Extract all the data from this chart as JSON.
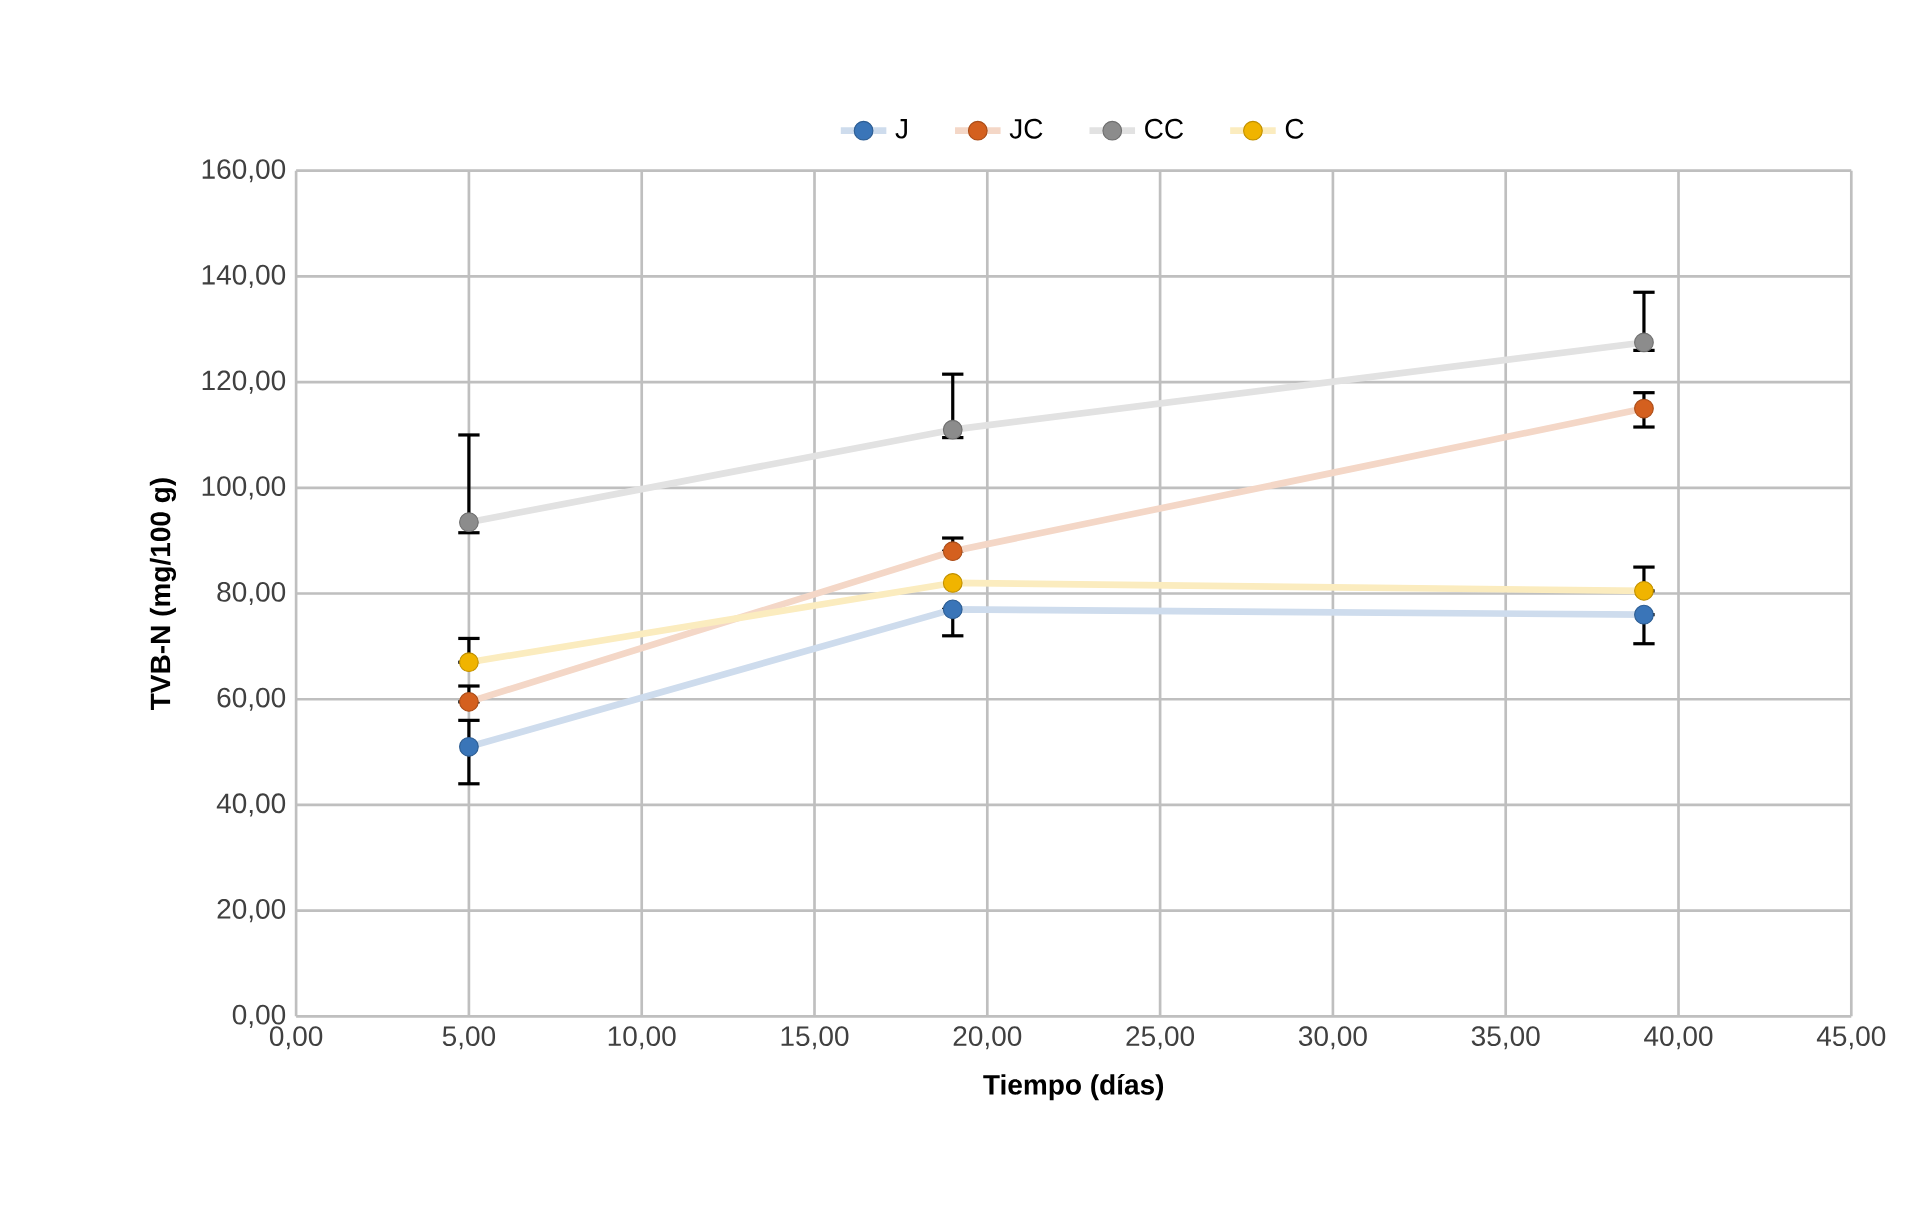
{
  "chart_data": {
    "type": "line",
    "xlabel": "Tiempo (días)",
    "ylabel": "TVB-N (mg/100 g)",
    "x": [
      5,
      19,
      39
    ],
    "series": [
      {
        "name": "J",
        "color": "#3a75b8",
        "values": [
          51,
          77,
          76
        ],
        "errors": [
          [
            44,
            56
          ],
          [
            72,
            77
          ],
          [
            70.5,
            76
          ]
        ]
      },
      {
        "name": "JC",
        "color": "#d4601f",
        "values": [
          59.5,
          88,
          115
        ],
        "errors": [
          [
            59.5,
            62.5
          ],
          [
            88,
            90.5
          ],
          [
            111.5,
            118
          ]
        ]
      },
      {
        "name": "CC",
        "color": "#8c8c8c",
        "values": [
          93.5,
          111,
          127.5
        ],
        "errors": [
          [
            91.5,
            110
          ],
          [
            109.5,
            121.5
          ],
          [
            126,
            137
          ]
        ]
      },
      {
        "name": "C",
        "color": "#f0b400",
        "values": [
          67,
          82,
          80.5
        ],
        "errors": [
          [
            67,
            71.5
          ],
          null,
          [
            80.5,
            85
          ]
        ]
      }
    ],
    "xlim": [
      0,
      45
    ],
    "ylim": [
      0,
      160
    ],
    "xticks": [
      {
        "value": 0,
        "label": "0,00"
      },
      {
        "value": 5,
        "label": "5,00"
      },
      {
        "value": 10,
        "label": "10,00"
      },
      {
        "value": 15,
        "label": "15,00"
      },
      {
        "value": 20,
        "label": "20,00"
      },
      {
        "value": 25,
        "label": "25,00"
      },
      {
        "value": 30,
        "label": "30,00"
      },
      {
        "value": 35,
        "label": "35,00"
      },
      {
        "value": 40,
        "label": "40,00"
      },
      {
        "value": 45,
        "label": "45,00"
      }
    ],
    "yticks": [
      {
        "value": 0,
        "label": "0,00"
      },
      {
        "value": 20,
        "label": "20,00"
      },
      {
        "value": 40,
        "label": "40,00"
      },
      {
        "value": 60,
        "label": "60,00"
      },
      {
        "value": 80,
        "label": "80,00"
      },
      {
        "value": 100,
        "label": "100,00"
      },
      {
        "value": 120,
        "label": "120,00"
      },
      {
        "value": 140,
        "label": "140,00"
      },
      {
        "value": 160,
        "label": "160,00"
      }
    ],
    "grid": true,
    "legend": "top",
    "marker": "circle",
    "line_style": "solid"
  }
}
